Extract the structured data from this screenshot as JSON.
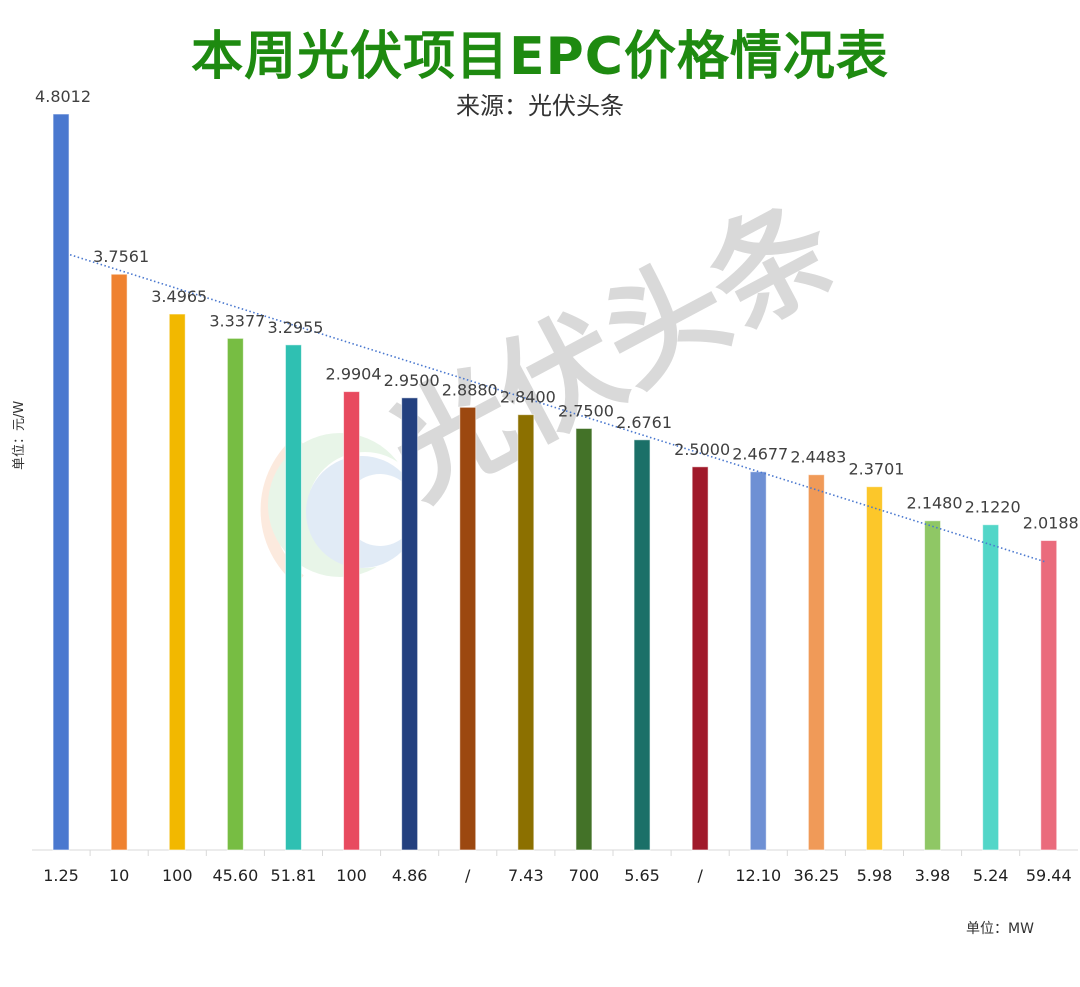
{
  "chart_data": {
    "type": "bar",
    "title": "本周光伏项目EPC价格情况表",
    "subtitle": "来源：光伏头条",
    "ylabel": "单位：元/W",
    "xlabel": "单位：MW",
    "categories": [
      "1.25",
      "10",
      "100",
      "45.60",
      "51.81",
      "100",
      "4.86",
      "/",
      "7.43",
      "700",
      "5.65",
      "/",
      "12.10",
      "36.25",
      "5.98",
      "3.98",
      "5.24",
      "59.44"
    ],
    "values": [
      4.8012,
      3.7561,
      3.4965,
      3.3377,
      3.2955,
      2.9904,
      2.95,
      2.888,
      2.84,
      2.75,
      2.6761,
      2.5,
      2.4677,
      2.4483,
      2.3701,
      2.148,
      2.122,
      2.0188
    ],
    "data_labels": [
      "4.8012",
      "3.7561",
      "3.4965",
      "3.3377",
      "3.2955",
      "2.9904",
      "2.9500",
      "2.8880",
      "2.8400",
      "2.7500",
      "2.6761",
      "2.5000",
      "2.4677",
      "2.4483",
      "2.3701",
      "2.1480",
      "2.1220",
      "2.0188"
    ],
    "colors": [
      "#4a78cf",
      "#ef8230",
      "#f2b800",
      "#77bd43",
      "#2fc0b2",
      "#e84a5f",
      "#23407f",
      "#9c4810",
      "#8c7000",
      "#437228",
      "#1b7068",
      "#a0192a",
      "#6e90d4",
      "#f09a58",
      "#fcc72a",
      "#8fc765",
      "#52d6c8",
      "#ea6b7c"
    ],
    "ylim": [
      0,
      4.8012
    ],
    "trendline": {
      "type": "linear",
      "style": "dotted",
      "color": "#4a78cf"
    },
    "grid": false,
    "legend": "none"
  },
  "watermark": {
    "text": "光伏头条"
  }
}
